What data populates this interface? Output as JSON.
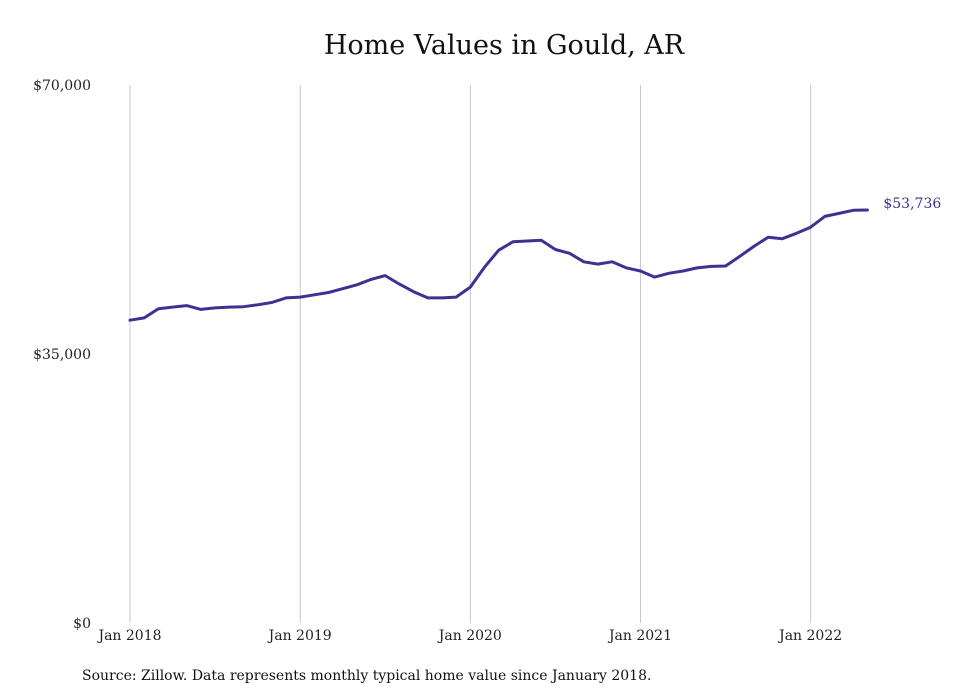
{
  "chart_data": {
    "type": "line",
    "title": "Home Values in Gould, AR",
    "xlabel": "",
    "ylabel": "",
    "ylim": [
      0,
      70000
    ],
    "y_ticks": [
      {
        "value": 0,
        "label": "$0"
      },
      {
        "value": 35000,
        "label": "$35,000"
      },
      {
        "value": 70000,
        "label": "$70,000"
      }
    ],
    "x_ticks": [
      {
        "month": 0,
        "label": "Jan 2018"
      },
      {
        "month": 12,
        "label": "Jan 2019"
      },
      {
        "month": 24,
        "label": "Jan 2020"
      },
      {
        "month": 36,
        "label": "Jan 2021"
      },
      {
        "month": 48,
        "label": "Jan 2022"
      }
    ],
    "grid": "vertical",
    "line_color": "#3a3392",
    "series": [
      {
        "name": "",
        "x": [
          "2018-01",
          "2018-02",
          "2018-03",
          "2018-04",
          "2018-05",
          "2018-06",
          "2018-07",
          "2018-08",
          "2018-09",
          "2018-10",
          "2018-11",
          "2018-12",
          "2019-01",
          "2019-02",
          "2019-03",
          "2019-04",
          "2019-05",
          "2019-06",
          "2019-07",
          "2019-08",
          "2019-09",
          "2019-10",
          "2019-11",
          "2019-12",
          "2020-01",
          "2020-02",
          "2020-03",
          "2020-04",
          "2020-05",
          "2020-06",
          "2020-07",
          "2020-08",
          "2020-09",
          "2020-10",
          "2020-11",
          "2020-12",
          "2021-01",
          "2021-02",
          "2021-03",
          "2021-04",
          "2021-05",
          "2021-06",
          "2021-07",
          "2021-08",
          "2021-09",
          "2021-10",
          "2021-11",
          "2021-12",
          "2022-01",
          "2022-02",
          "2022-03",
          "2022-04",
          "2022-05"
        ],
        "values": [
          39400,
          39700,
          40900,
          41100,
          41300,
          40800,
          41000,
          41100,
          41150,
          41400,
          41700,
          42300,
          42400,
          42700,
          43000,
          43500,
          44000,
          44700,
          45200,
          44100,
          43100,
          42300,
          42300,
          42400,
          43700,
          46300,
          48500,
          49600,
          49700,
          49800,
          48600,
          48100,
          47000,
          46700,
          47000,
          46200,
          45800,
          45000,
          45500,
          45800,
          46200,
          46400,
          46450,
          47700,
          49000,
          50200,
          50000,
          50700,
          51500,
          52900,
          53300,
          53700,
          53736
        ]
      }
    ],
    "end_label": "$53,736"
  },
  "footer": {
    "source": "Source: Zillow. Data represents monthly typical home value since January 2018."
  }
}
